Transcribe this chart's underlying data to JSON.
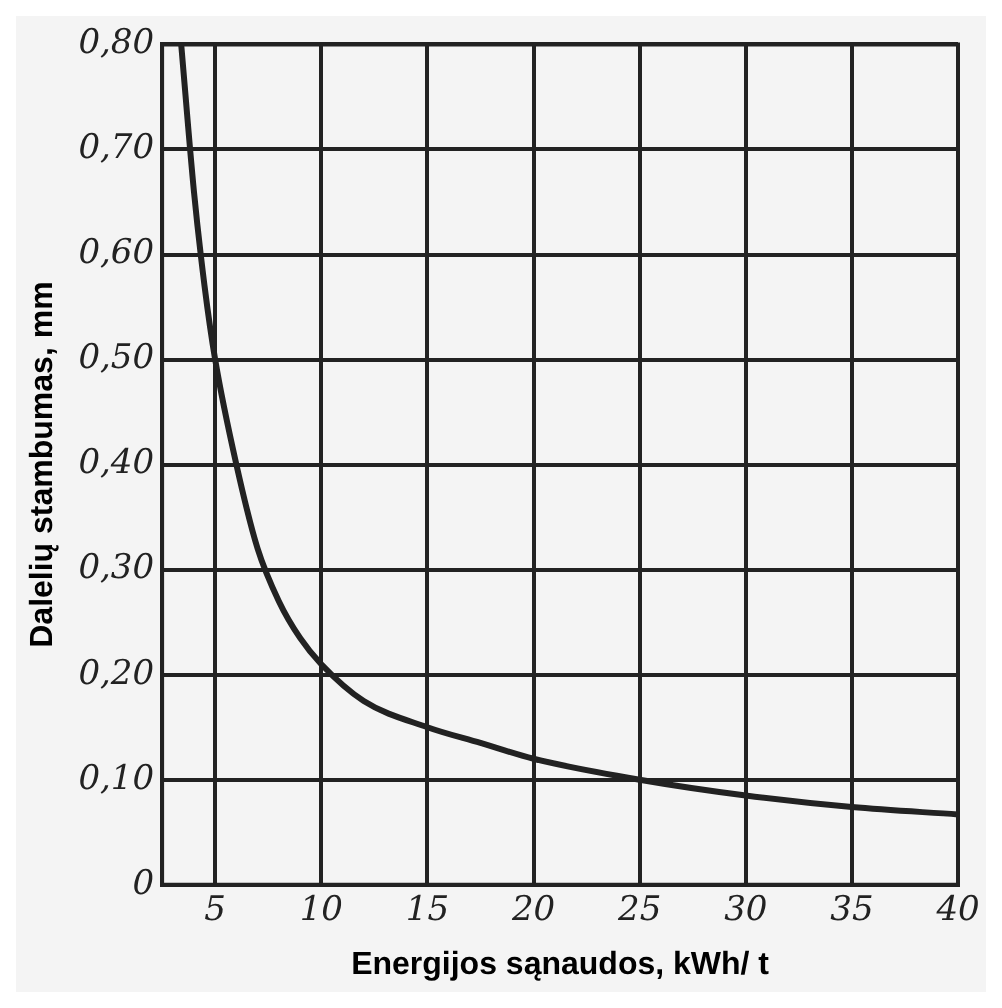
{
  "chart_data": {
    "type": "line",
    "xlabel": "Energijos sąnaudos, kWh/ t",
    "ylabel": "Dalelių stambumas, mm",
    "x": [
      3.4,
      4,
      4.5,
      5,
      6,
      7,
      8,
      9,
      10,
      12,
      15,
      17.5,
      20,
      25,
      30,
      35,
      40
    ],
    "series": [
      {
        "color": "#222222",
        "values": [
          0.8,
          0.66,
          0.57,
          0.5,
          0.4,
          0.32,
          0.27,
          0.235,
          0.21,
          0.175,
          0.15,
          0.135,
          0.12,
          0.1,
          0.085,
          0.074,
          0.067
        ]
      }
    ],
    "xlim": [
      2.5,
      40
    ],
    "xticks": [
      5,
      10,
      15,
      20,
      25,
      30,
      35,
      40
    ],
    "ylim": [
      0,
      0.8
    ],
    "yticks": [
      {
        "value": 0,
        "label": "0"
      },
      {
        "value": 0.1,
        "label": "0,10"
      },
      {
        "value": 0.2,
        "label": "0,20"
      },
      {
        "value": 0.3,
        "label": "0,30"
      },
      {
        "value": 0.4,
        "label": "0,40"
      },
      {
        "value": 0.5,
        "label": "0,50"
      },
      {
        "value": 0.6,
        "label": "0,60"
      },
      {
        "value": 0.7,
        "label": "0,70"
      },
      {
        "value": 0.8,
        "label": "0,80"
      }
    ],
    "grid": true,
    "legend": false,
    "marker": "none",
    "line_style": "solid"
  }
}
